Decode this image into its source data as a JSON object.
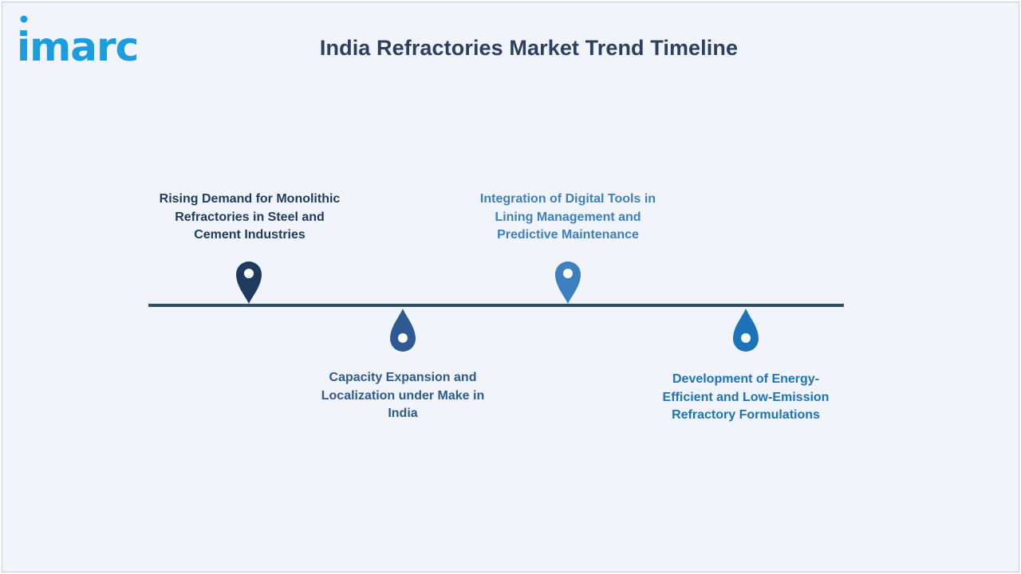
{
  "brand": {
    "logo_text": "imarc",
    "logo_color": "#1b9de0"
  },
  "title": "India Refractories Market Trend Timeline",
  "colors": {
    "title": "#2b3f60",
    "line": "#2a4f6e"
  },
  "events": [
    {
      "text": "Rising Demand for Monolithic Refractories in Steel and Cement Industries",
      "position": "above",
      "icon": "map-pin-icon",
      "color": "#1f3a5f"
    },
    {
      "text": "Capacity Expansion and Localization under Make in India",
      "position": "below",
      "icon": "droplet-icon",
      "color": "#2e5992"
    },
    {
      "text": "Integration of Digital Tools in Lining Management and Predictive Maintenance",
      "position": "above",
      "icon": "map-pin-icon",
      "color": "#3d7fc0"
    },
    {
      "text": "Development of Energy-Efficient and Low-Emission Refractory Formulations",
      "position": "below",
      "icon": "droplet-icon",
      "color": "#1c73b9"
    }
  ]
}
